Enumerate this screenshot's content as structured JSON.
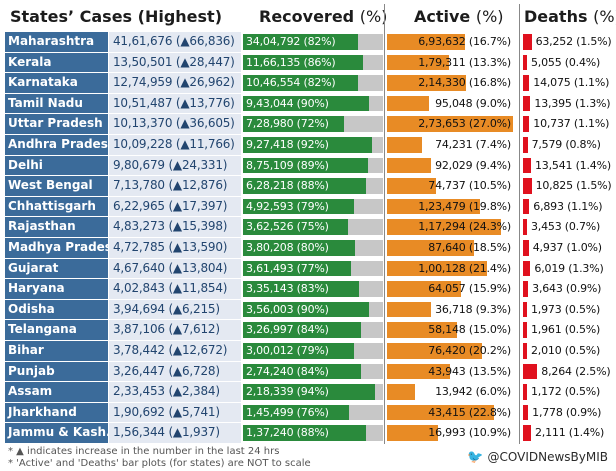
{
  "chart_data": {
    "type": "table",
    "headers": {
      "state": "States’ Cases (Highest)",
      "recovered": "Recovered",
      "active": "Active",
      "deaths": "Deaths",
      "unit": "(%)"
    },
    "rows": [
      {
        "state": "Maharashtra",
        "cases": "41,61,676 (▲66,836)",
        "recovered": "34,04,792 (82%)",
        "recovered_pct": 82,
        "active": "6,93,632 (16.7%)",
        "active_pct": 16.7,
        "deaths": "63,252 (1.5%)",
        "deaths_pct": 1.5
      },
      {
        "state": "Kerala",
        "cases": "13,50,501 (▲28,447)",
        "recovered": "11,66,135 (86%)",
        "recovered_pct": 86,
        "active": "1,79,311 (13.3%)",
        "active_pct": 13.3,
        "deaths": "5,055 (0.4%)",
        "deaths_pct": 0.4
      },
      {
        "state": "Karnataka",
        "cases": "12,74,959 (▲26,962)",
        "recovered": "10,46,554 (82%)",
        "recovered_pct": 82,
        "active": "2,14,330 (16.8%)",
        "active_pct": 16.8,
        "deaths": "14,075 (1.1%)",
        "deaths_pct": 1.1
      },
      {
        "state": "Tamil Nadu",
        "cases": "10,51,487 (▲13,776)",
        "recovered": "9,43,044 (90%)",
        "recovered_pct": 90,
        "active": "95,048 (9.0%)",
        "active_pct": 9.0,
        "deaths": "13,395 (1.3%)",
        "deaths_pct": 1.3
      },
      {
        "state": "Uttar Pradesh",
        "cases": "10,13,370 (▲36,605)",
        "recovered": "7,28,980 (72%)",
        "recovered_pct": 72,
        "active": "2,73,653 (27.0%)",
        "active_pct": 27.0,
        "deaths": "10,737 (1.1%)",
        "deaths_pct": 1.1
      },
      {
        "state": "Andhra Pradesh",
        "cases": "10,09,228 (▲11,766)",
        "recovered": "9,27,418 (92%)",
        "recovered_pct": 92,
        "active": "74,231 (7.4%)",
        "active_pct": 7.4,
        "deaths": "7,579 (0.8%)",
        "deaths_pct": 0.8
      },
      {
        "state": "Delhi",
        "cases": "9,80,679 (▲24,331)",
        "recovered": "8,75,109 (89%)",
        "recovered_pct": 89,
        "active": "92,029 (9.4%)",
        "active_pct": 9.4,
        "deaths": "13,541 (1.4%)",
        "deaths_pct": 1.4
      },
      {
        "state": "West Bengal",
        "cases": "7,13,780 (▲12,876)",
        "recovered": "6,28,218 (88%)",
        "recovered_pct": 88,
        "active": "74,737 (10.5%)",
        "active_pct": 10.5,
        "deaths": "10,825 (1.5%)",
        "deaths_pct": 1.5
      },
      {
        "state": "Chhattisgarh",
        "cases": "6,22,965 (▲17,397)",
        "recovered": "4,92,593 (79%)",
        "recovered_pct": 79,
        "active": "1,23,479 (19.8%)",
        "active_pct": 19.8,
        "deaths": "6,893 (1.1%)",
        "deaths_pct": 1.1
      },
      {
        "state": "Rajasthan",
        "cases": "4,83,273 (▲15,398)",
        "recovered": "3,62,526 (75%)",
        "recovered_pct": 75,
        "active": "1,17,294 (24.3%)",
        "active_pct": 24.3,
        "deaths": "3,453 (0.7%)",
        "deaths_pct": 0.7
      },
      {
        "state": "Madhya Pradesh",
        "cases": "4,72,785 (▲13,590)",
        "recovered": "3,80,208 (80%)",
        "recovered_pct": 80,
        "active": "87,640 (18.5%)",
        "active_pct": 18.5,
        "deaths": "4,937 (1.0%)",
        "deaths_pct": 1.0
      },
      {
        "state": "Gujarat",
        "cases": "4,67,640 (▲13,804)",
        "recovered": "3,61,493 (77%)",
        "recovered_pct": 77,
        "active": "1,00,128 (21.4%)",
        "active_pct": 21.4,
        "deaths": "6,019 (1.3%)",
        "deaths_pct": 1.3
      },
      {
        "state": "Haryana",
        "cases": "4,02,843 (▲11,854)",
        "recovered": "3,35,143 (83%)",
        "recovered_pct": 83,
        "active": "64,057 (15.9%)",
        "active_pct": 15.9,
        "deaths": "3,643 (0.9%)",
        "deaths_pct": 0.9
      },
      {
        "state": "Odisha",
        "cases": "3,94,694 (▲6,215)",
        "recovered": "3,56,003 (90%)",
        "recovered_pct": 90,
        "active": "36,718 (9.3%)",
        "active_pct": 9.3,
        "deaths": "1,973 (0.5%)",
        "deaths_pct": 0.5
      },
      {
        "state": "Telangana",
        "cases": "3,87,106 (▲7,612)",
        "recovered": "3,26,997 (84%)",
        "recovered_pct": 84,
        "active": "58,148 (15.0%)",
        "active_pct": 15.0,
        "deaths": "1,961 (0.5%)",
        "deaths_pct": 0.5
      },
      {
        "state": "Bihar",
        "cases": "3,78,442 (▲12,672)",
        "recovered": "3,00,012 (79%)",
        "recovered_pct": 79,
        "active": "76,420 (20.2%)",
        "active_pct": 20.2,
        "deaths": "2,010 (0.5%)",
        "deaths_pct": 0.5
      },
      {
        "state": "Punjab",
        "cases": "3,26,447 (▲6,728)",
        "recovered": "2,74,240 (84%)",
        "recovered_pct": 84,
        "active": "43,943 (13.5%)",
        "active_pct": 13.5,
        "deaths": "8,264 (2.5%)",
        "deaths_pct": 2.5
      },
      {
        "state": "Assam",
        "cases": "2,33,453 (▲2,384)",
        "recovered": "2,18,339 (94%)",
        "recovered_pct": 94,
        "active": "13,942 (6.0%)",
        "active_pct": 6.0,
        "deaths": "1,172 (0.5%)",
        "deaths_pct": 0.5
      },
      {
        "state": "Jharkhand",
        "cases": "1,90,692 (▲5,741)",
        "recovered": "1,45,499 (76%)",
        "recovered_pct": 76,
        "active": "43,415 (22.8%)",
        "active_pct": 22.8,
        "deaths": "1,778 (0.9%)",
        "deaths_pct": 0.9
      },
      {
        "state": "Jammu & Kash..",
        "cases": "1,56,344 (▲1,937)",
        "recovered": "1,37,240 (88%)",
        "recovered_pct": 88,
        "active": "16,993 (10.9%)",
        "active_pct": 10.9,
        "deaths": "2,111 (1.4%)",
        "deaths_pct": 1.4
      }
    ]
  },
  "footer": {
    "note1": "* ▲ indicates increase in the number in the last 24 hrs",
    "note2": "* 'Active' and 'Deaths' bar plots (for states) are NOT to scale",
    "handle": "@COVIDNewsByMIB",
    "icon": "twitter-bird-icon"
  },
  "colors": {
    "state_bg": "#3b6b9a",
    "cases_bg": "#e4e9f2",
    "recovered": "#2a8a3c",
    "recovered_track": "#c7c7c7",
    "active": "#e88b25",
    "deaths": "#e0111e"
  }
}
